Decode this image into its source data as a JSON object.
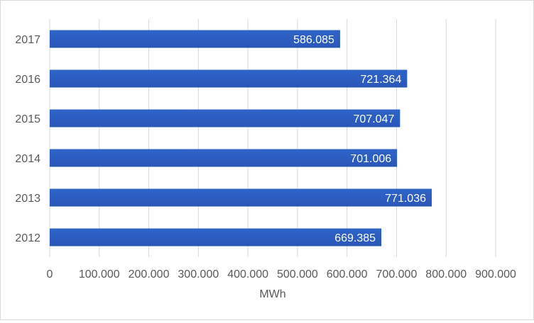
{
  "chart_data": {
    "type": "bar",
    "orientation": "horizontal",
    "categories": [
      "2012",
      "2013",
      "2014",
      "2015",
      "2016",
      "2017"
    ],
    "values": [
      669385,
      771036,
      701006,
      707047,
      721364,
      586085
    ],
    "value_labels": [
      "669.385",
      "771.036",
      "701.006",
      "707.047",
      "721.364",
      "586.085"
    ],
    "xlabel": "MWh",
    "ylabel": "",
    "xlim": [
      0,
      900000
    ],
    "x_ticks": [
      0,
      100000,
      200000,
      300000,
      400000,
      500000,
      600000,
      700000,
      800000,
      900000
    ],
    "x_tick_labels": [
      "0",
      "100.000",
      "200.000",
      "300.000",
      "400.000",
      "500.000",
      "600.000",
      "700.000",
      "800.000",
      "900.000"
    ],
    "grid": "vertical",
    "legend": "none",
    "colors": {
      "bar": "#4472c4",
      "bar_gradient_top": "#2f63c8",
      "bar_gradient_bottom": "#2a58b8",
      "gridline": "#d9d9d9",
      "axis_text": "#595959",
      "data_label": "#ffffff"
    }
  }
}
